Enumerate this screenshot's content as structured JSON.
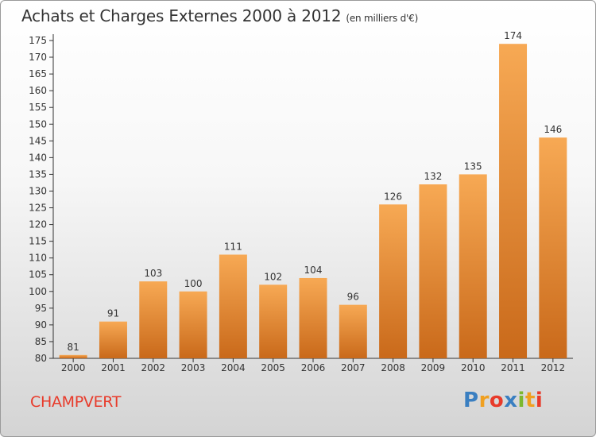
{
  "header": {
    "title": "Achats et Charges Externes 2000 à 2012",
    "unit": "(en milliers d'€)"
  },
  "footer": {
    "city": "CHAMPVERT"
  },
  "logo": {
    "letters": [
      "P",
      "r",
      "o",
      "x",
      "i",
      "t",
      "i"
    ],
    "colors": [
      "#3a7fc1",
      "#f0a020",
      "#e83a2a",
      "#3a7fc1",
      "#7cb82f",
      "#f0a020",
      "#e83a2a"
    ]
  },
  "chart_data": {
    "type": "bar",
    "title": "Achats et Charges Externes 2000 à 2012",
    "subtitle": "(en milliers d'€)",
    "categories": [
      "2000",
      "2001",
      "2002",
      "2003",
      "2004",
      "2005",
      "2006",
      "2007",
      "2008",
      "2009",
      "2010",
      "2011",
      "2012"
    ],
    "values": [
      81,
      91,
      103,
      100,
      111,
      102,
      104,
      96,
      126,
      132,
      135,
      174,
      146
    ],
    "ylim": [
      80,
      175
    ],
    "yticks": [
      80,
      85,
      90,
      95,
      100,
      105,
      110,
      115,
      120,
      125,
      130,
      135,
      140,
      145,
      150,
      155,
      160,
      165,
      170,
      175
    ],
    "grid": false,
    "legend": "none",
    "colors": {
      "bar_top": "#f7a954",
      "bar_bottom": "#c9691a",
      "axis": "#333333"
    }
  }
}
